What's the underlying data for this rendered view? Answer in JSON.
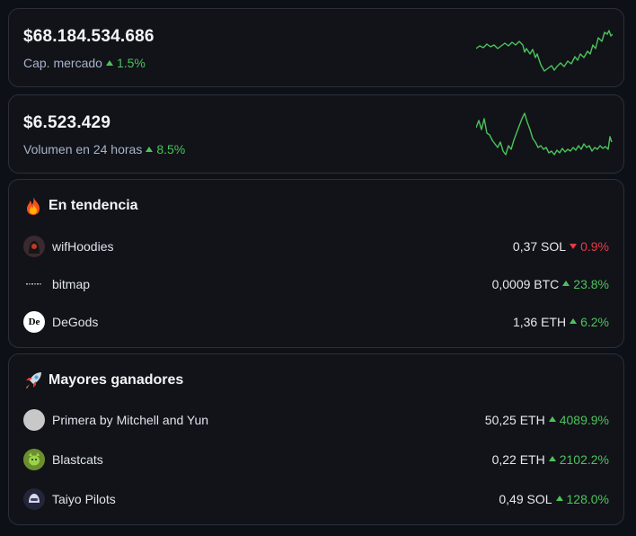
{
  "market_cap": {
    "value": "$68.184.534.686",
    "label": "Cap. mercado",
    "change": "1.5%",
    "direction": "up"
  },
  "volume": {
    "value": "$6.523.429",
    "label": "Volumen en 24 horas",
    "change": "8.5%",
    "direction": "up"
  },
  "trending": {
    "title": "En tendencia",
    "icon": "fire-icon",
    "items": [
      {
        "name": "wifHoodies",
        "price": "0,37 SOL",
        "change": "0.9%",
        "direction": "down"
      },
      {
        "name": "bitmap",
        "price": "0,0009 BTC",
        "change": "23.8%",
        "direction": "up"
      },
      {
        "name": "DeGods",
        "price": "1,36 ETH",
        "change": "6.2%",
        "direction": "up",
        "avatar_text": "De"
      }
    ]
  },
  "gainers": {
    "title": "Mayores ganadores",
    "icon": "rocket-icon",
    "items": [
      {
        "name": "Primera by Mitchell and Yun",
        "price": "50,25 ETH",
        "change": "4089.9%",
        "direction": "up"
      },
      {
        "name": "Blastcats",
        "price": "0,22 ETH",
        "change": "2102.2%",
        "direction": "up"
      },
      {
        "name": "Taiyo Pilots",
        "price": "0,49 SOL",
        "change": "128.0%",
        "direction": "up"
      }
    ]
  },
  "colors": {
    "up": "#4cc35a",
    "down": "#ea3943",
    "background": "#0d1117",
    "card": "#111319"
  }
}
